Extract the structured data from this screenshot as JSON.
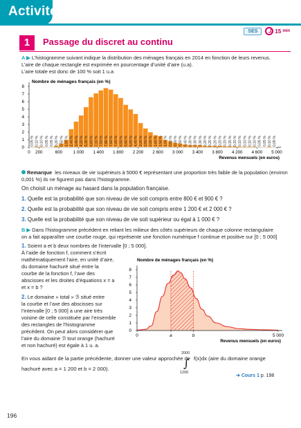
{
  "header": {
    "title": "Activités"
  },
  "meta": {
    "badge": "SES",
    "duration": "15",
    "duration_unit": "min"
  },
  "activity": {
    "number": "1",
    "title": "Passage du discret au continu"
  },
  "partA": {
    "label": "A ▶",
    "line1": "L’histogramme suivant indique la distribution des ménages français en 2014 en fonction de leurs revenus.",
    "line2": "L’aire de chaque rectangle est exprimée en pourcentage d’unité d’aire (u.a).",
    "line3": "L’aire totale est donc de 100 % soit 1 u.a"
  },
  "chart_data": [
    {
      "type": "bar",
      "title": "",
      "ylabel": "Nombre de ménages français (en %)",
      "xlabel": "Revenus mensuels (en euros)",
      "ylim": [
        0,
        8
      ],
      "y_ticks": [
        "0",
        "1",
        "2",
        "3",
        "4",
        "5",
        "6",
        "7",
        "8"
      ],
      "x_ticks": [
        "0",
        "200",
        "600",
        "1 000",
        "1 400",
        "1 800",
        "2 200",
        "2 600",
        "3 000",
        "3 400",
        "3 800",
        "4 200",
        "4 600",
        "5 000"
      ],
      "x_tick_values": [
        0,
        200,
        600,
        1000,
        1400,
        1800,
        2200,
        2600,
        3000,
        3400,
        3800,
        4200,
        4600,
        5000
      ],
      "bin_width": 100,
      "bins_start": 0,
      "values": [
        0.05,
        0.1,
        0.1,
        0.05,
        0.05,
        0.2,
        0.5,
        1.0,
        2.4,
        3.4,
        4.2,
        5.3,
        6.6,
        7.1,
        7.5,
        7.8,
        7.6,
        7.0,
        6.5,
        5.6,
        5.0,
        4.4,
        3.2,
        2.5,
        2.0,
        1.6,
        1.5,
        1.0,
        0.8,
        0.6,
        0.5,
        0.4,
        0.3,
        0.3,
        0.3,
        0.2,
        0.2,
        0.2,
        0.2,
        0.15,
        0.15,
        0.15,
        0.1,
        0.1,
        0.1,
        0.1,
        0.05,
        0.05,
        0.1,
        0.05
      ],
      "value_labels": [
        "0,05 %",
        "0,10 %",
        "0,10 %",
        "0,05 %",
        "0,05 %",
        "0,20 %",
        "0,50 %",
        "1,00 %",
        "2,40 %",
        "3,40 %",
        "4,20 %",
        "5,30 %",
        "6,60 %",
        "7,10 %",
        "7,50 %",
        "7,80 %",
        "7,60 %",
        "7,00 %",
        "6,50 %",
        "5,60 %",
        "5,00 %",
        "4,40 %",
        "3,20 %",
        "2,50 %",
        "2,00 %",
        "1,60 %",
        "1,50 %",
        "1,00 %",
        "0,80 %",
        "0,60 %",
        "0,50 %",
        "0,40 %",
        "0,30 %",
        "0,30 %",
        "0,30 %",
        "0,20 %",
        "0,20 %",
        "0,20 %",
        "0,20 %",
        "0,15 %",
        "0,15 %",
        "0,15 %",
        "0,10 %",
        "0,10 %",
        "0,10 %",
        "0,10 %",
        "0,05 %",
        "0,05 %",
        "0,10 %",
        "0,05 %"
      ],
      "colors": {
        "bar": "#f7901e",
        "bar_border": "#ffffff",
        "label": "#1e1e1e"
      }
    },
    {
      "type": "area",
      "title": "",
      "ylabel": "Nombre de ménages français (en %)",
      "xlabel": "Revenus mensuels (en euros)",
      "ylim": [
        0,
        8
      ],
      "xlim": [
        0,
        5000
      ],
      "y_ticks": [
        "0",
        "1",
        "2",
        "3",
        "4",
        "5",
        "6",
        "7",
        "8"
      ],
      "x_ticks": [
        "0",
        "a",
        "b",
        "5 000"
      ],
      "x_tick_values": [
        0,
        1200,
        2000,
        5000
      ],
      "hatched_between": [
        1200,
        2000
      ],
      "x": [
        0,
        300,
        500,
        700,
        900,
        1100,
        1300,
        1450,
        1550,
        1700,
        1900,
        2100,
        2300,
        2500,
        2800,
        3200,
        3600,
        4000,
        4500,
        5000
      ],
      "y": [
        0.05,
        0.15,
        0.6,
        2.5,
        4.5,
        6.2,
        7.3,
        7.85,
        7.6,
        6.8,
        5.6,
        4.2,
        2.8,
        1.9,
        1.0,
        0.5,
        0.25,
        0.15,
        0.1,
        0.05
      ],
      "colors": {
        "fill": "#fbd5c0",
        "line": "#e5342c",
        "hatch": "#e5342c"
      }
    }
  ],
  "remark": {
    "label": "Remarque",
    "line1": "les niveaux de vie supérieurs à 5000 € représentant une proportion très faible de la population (environ",
    "line2": "0,001 %) ils ne figurent pas dans l’histogramme."
  },
  "choose": "On choisit un ménage au hasard dans la population française.",
  "questions": [
    {
      "num": "1.",
      "text": "Quelle est la probabilité que son niveau de vie soit compris entre 800 € et 900 € ?"
    },
    {
      "num": "2.",
      "text": "Quelle est la probabilité que son niveau de vie soit compris entre 1 200 € et 2 000 € ?"
    },
    {
      "num": "3.",
      "text": "Quelle est la probabilité que son niveau de vie soit supérieur ou égal à 1 000 € ?"
    }
  ],
  "partB": {
    "label": "B ▶",
    "line1": "Dans l’histogramme précédent en reliant les milieux des côtés supérieurs de chaque colonne rectangulaire",
    "line2": "on a fait apparaître une courbe rouge, qui représente une fonction numérique f continue et positive sur [0 ; 5 000]",
    "q1_num": "1.",
    "q1_lines": [
      "Soient a et b deux nombres de l’intervalle [0 ; 5 000].",
      "À l’aide de fonction f, comment s’écrit",
      "mathématiquement l’aire, en unité d’aire,",
      "du domaine hachuré situé entre la",
      "courbe de la fonction f, l’axe des",
      "abscisses et les droites d’équations x = a",
      "et x = b ?"
    ],
    "q2_num": "2.",
    "q2_lines": [
      "Le domaine « total » ℬ situé entre",
      "la courbe et l’axe des abscisses sur",
      "l’intervalle [0 ; 5 000] a une aire très",
      "voisine de celle constituée par l’ensemble",
      "des rectangles de l’histogramme",
      "précédent. On peut alors considérer que",
      "l’aire du domaine ℬ tout orange (hachuré",
      "et non hachuré) est égale à 1 u. a."
    ],
    "final_line1_a": "En vous aidant de la partie précédente, donner une valeur approchée de",
    "final_line1_b": "f(x)dx (aire du domaine orange",
    "integral_upper": "2000",
    "integral_lower": "1200",
    "final_line2": "hachuré avec a = 1 200 et b = 2 000)."
  },
  "reference": {
    "arrow": "➜",
    "cours": "Cours 1",
    "page": "p. 198"
  },
  "page_number": "196"
}
